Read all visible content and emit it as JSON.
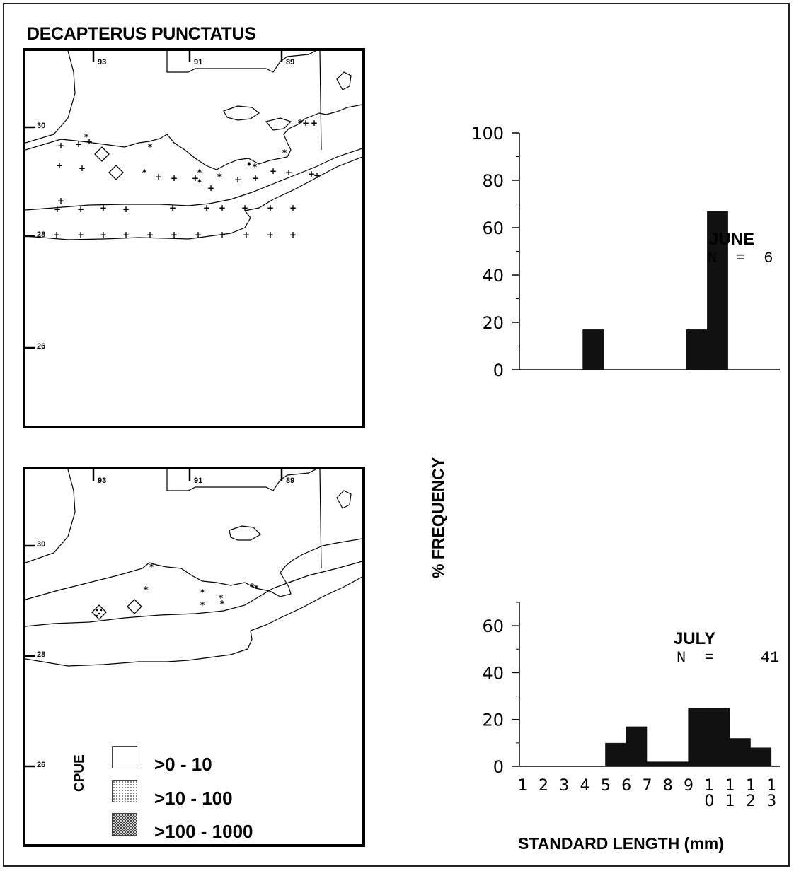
{
  "title": "DECAPTERUS PUNCTATUS",
  "maps": [
    {
      "lon_ticks": [
        "93",
        "91",
        "89"
      ],
      "lat_ticks": [
        "30",
        "28",
        "26"
      ]
    },
    {
      "lon_ticks": [
        "93",
        "91",
        "89"
      ],
      "lat_ticks": [
        "30",
        "28",
        "26"
      ]
    }
  ],
  "legend": {
    "title": "CPUE",
    "items": [
      {
        "label": ">0 - 10",
        "pattern": "blank"
      },
      {
        "label": ">10 - 100",
        "pattern": "stipple"
      },
      {
        "label": ">100 - 1000",
        "pattern": "crosshatch"
      }
    ]
  },
  "y_axis_label": "% FREQUENCY",
  "x_axis_label": "STANDARD LENGTH (mm)",
  "chart_data": [
    {
      "type": "bar",
      "month": "JUNE",
      "n_label": "N  =  6",
      "categories": [
        "1",
        "2",
        "3",
        "4",
        "5",
        "6",
        "7",
        "8",
        "9",
        "10",
        "11",
        "12",
        "13"
      ],
      "values": [
        0,
        17,
        0,
        0,
        0,
        0,
        17,
        67,
        0,
        0,
        0,
        0,
        0
      ],
      "ylim": [
        0,
        100
      ],
      "yticks": [
        0,
        20,
        40,
        60,
        80,
        100
      ]
    },
    {
      "type": "bar",
      "month": "JULY",
      "n_label": "N  =     41",
      "categories": [
        "1",
        "2",
        "3",
        "4",
        "5",
        "6",
        "7",
        "8",
        "9",
        "10",
        "11",
        "12",
        "13"
      ],
      "x_tick_top": [
        "1",
        "2",
        "3",
        "4",
        "5",
        "6",
        "7",
        "8",
        "9",
        "1",
        "1",
        "1",
        "1"
      ],
      "x_tick_bottom": [
        "",
        "",
        "",
        "",
        "",
        "",
        "",
        "",
        "",
        "0",
        "1",
        "2",
        "3"
      ],
      "values": [
        0,
        0,
        0,
        0,
        10,
        17,
        2,
        2,
        25,
        25,
        12,
        8,
        0
      ],
      "ylim": [
        0,
        70
      ],
      "yticks": [
        0,
        20,
        40,
        60
      ]
    }
  ]
}
